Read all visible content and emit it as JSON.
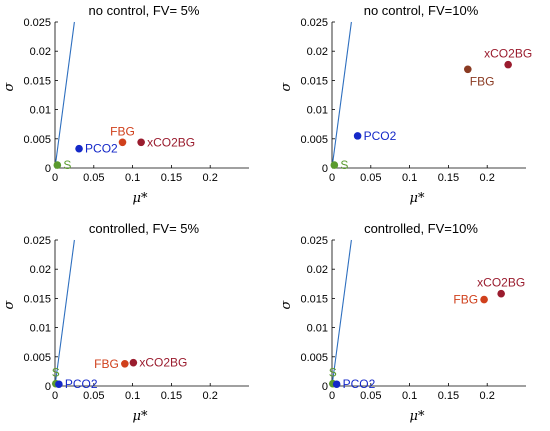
{
  "chart_data": [
    {
      "type": "scatter",
      "title": "no control, FV= 5%",
      "xlabel": "μ*",
      "ylabel": "σ",
      "xlim": [
        0,
        0.25
      ],
      "ylim": [
        0,
        0.025
      ],
      "xticks": [
        "0",
        "0.05",
        "0.1",
        "0.15",
        "0.2"
      ],
      "yticks": [
        "0",
        "0.005",
        "0.01",
        "0.015",
        "0.02",
        "0.025"
      ],
      "reference_line": {
        "x": [
          0,
          0.025
        ],
        "y": [
          0,
          0.025
        ],
        "color": "#2e6fbf"
      },
      "points": [
        {
          "label": "S",
          "x": 0.003,
          "y": 0.0005,
          "color": "#5a9a2e",
          "label_pos": "right"
        },
        {
          "label": "PCO2",
          "x": 0.031,
          "y": 0.0033,
          "color": "#1428c8",
          "label_pos": "right"
        },
        {
          "label": "FBG",
          "x": 0.087,
          "y": 0.0044,
          "color": "#d0401c",
          "label_pos": "top"
        },
        {
          "label": "xCO2BG",
          "x": 0.111,
          "y": 0.0044,
          "color": "#9a1c2e",
          "label_pos": "right"
        }
      ]
    },
    {
      "type": "scatter",
      "title": "no control, FV=10%",
      "xlabel": "μ*",
      "ylabel": "σ",
      "xlim": [
        0,
        0.25
      ],
      "ylim": [
        0,
        0.025
      ],
      "xticks": [
        "0",
        "0.05",
        "0.1",
        "0.15",
        "0.2"
      ],
      "yticks": [
        "0",
        "0.005",
        "0.01",
        "0.015",
        "0.02",
        "0.025"
      ],
      "reference_line": {
        "x": [
          0,
          0.025
        ],
        "y": [
          0,
          0.025
        ],
        "color": "#2e6fbf"
      },
      "points": [
        {
          "label": "S",
          "x": 0.003,
          "y": 0.0005,
          "color": "#5a9a2e",
          "label_pos": "right"
        },
        {
          "label": "PCO2",
          "x": 0.033,
          "y": 0.0055,
          "color": "#1428c8",
          "label_pos": "right"
        },
        {
          "label": "FBG",
          "x": 0.175,
          "y": 0.0169,
          "color": "#8a3a22",
          "label_pos": "below-right"
        },
        {
          "label": "xCO2BG",
          "x": 0.227,
          "y": 0.0177,
          "color": "#9a1c2e",
          "label_pos": "top"
        }
      ]
    },
    {
      "type": "scatter",
      "title": "controlled, FV= 5%",
      "xlabel": "μ*",
      "ylabel": "σ",
      "xlim": [
        0,
        0.25
      ],
      "ylim": [
        0,
        0.025
      ],
      "xticks": [
        "0",
        "0.05",
        "0.1",
        "0.15",
        "0.2"
      ],
      "yticks": [
        "0",
        "0.005",
        "0.01",
        "0.015",
        "0.02",
        "0.025"
      ],
      "reference_line": {
        "x": [
          0,
          0.025
        ],
        "y": [
          0,
          0.025
        ],
        "color": "#2e6fbf"
      },
      "points": [
        {
          "label": "S",
          "x": 0.001,
          "y": 0.0004,
          "color": "#5a9a2e",
          "label_pos": "top"
        },
        {
          "label": "PCO2",
          "x": 0.005,
          "y": 0.0003,
          "color": "#1428c8",
          "label_pos": "right"
        },
        {
          "label": "FBG",
          "x": 0.09,
          "y": 0.0038,
          "color": "#d0401c",
          "label_pos": "left"
        },
        {
          "label": "xCO2BG",
          "x": 0.101,
          "y": 0.004,
          "color": "#9a1c2e",
          "label_pos": "right"
        }
      ]
    },
    {
      "type": "scatter",
      "title": "controlled, FV=10%",
      "xlabel": "μ*",
      "ylabel": "σ",
      "xlim": [
        0,
        0.25
      ],
      "ylim": [
        0,
        0.025
      ],
      "xticks": [
        "0",
        "0.05",
        "0.1",
        "0.15",
        "0.2"
      ],
      "yticks": [
        "0",
        "0.005",
        "0.01",
        "0.015",
        "0.02",
        "0.025"
      ],
      "reference_line": {
        "x": [
          0,
          0.025
        ],
        "y": [
          0,
          0.025
        ],
        "color": "#2e6fbf"
      },
      "points": [
        {
          "label": "S",
          "x": 0.001,
          "y": 0.0004,
          "color": "#5a9a2e",
          "label_pos": "top"
        },
        {
          "label": "PCO2",
          "x": 0.006,
          "y": 0.0003,
          "color": "#1428c8",
          "label_pos": "right"
        },
        {
          "label": "FBG",
          "x": 0.196,
          "y": 0.0148,
          "color": "#d0401c",
          "label_pos": "left"
        },
        {
          "label": "xCO2BG",
          "x": 0.218,
          "y": 0.0158,
          "color": "#9a1c2e",
          "label_pos": "top"
        }
      ]
    }
  ]
}
